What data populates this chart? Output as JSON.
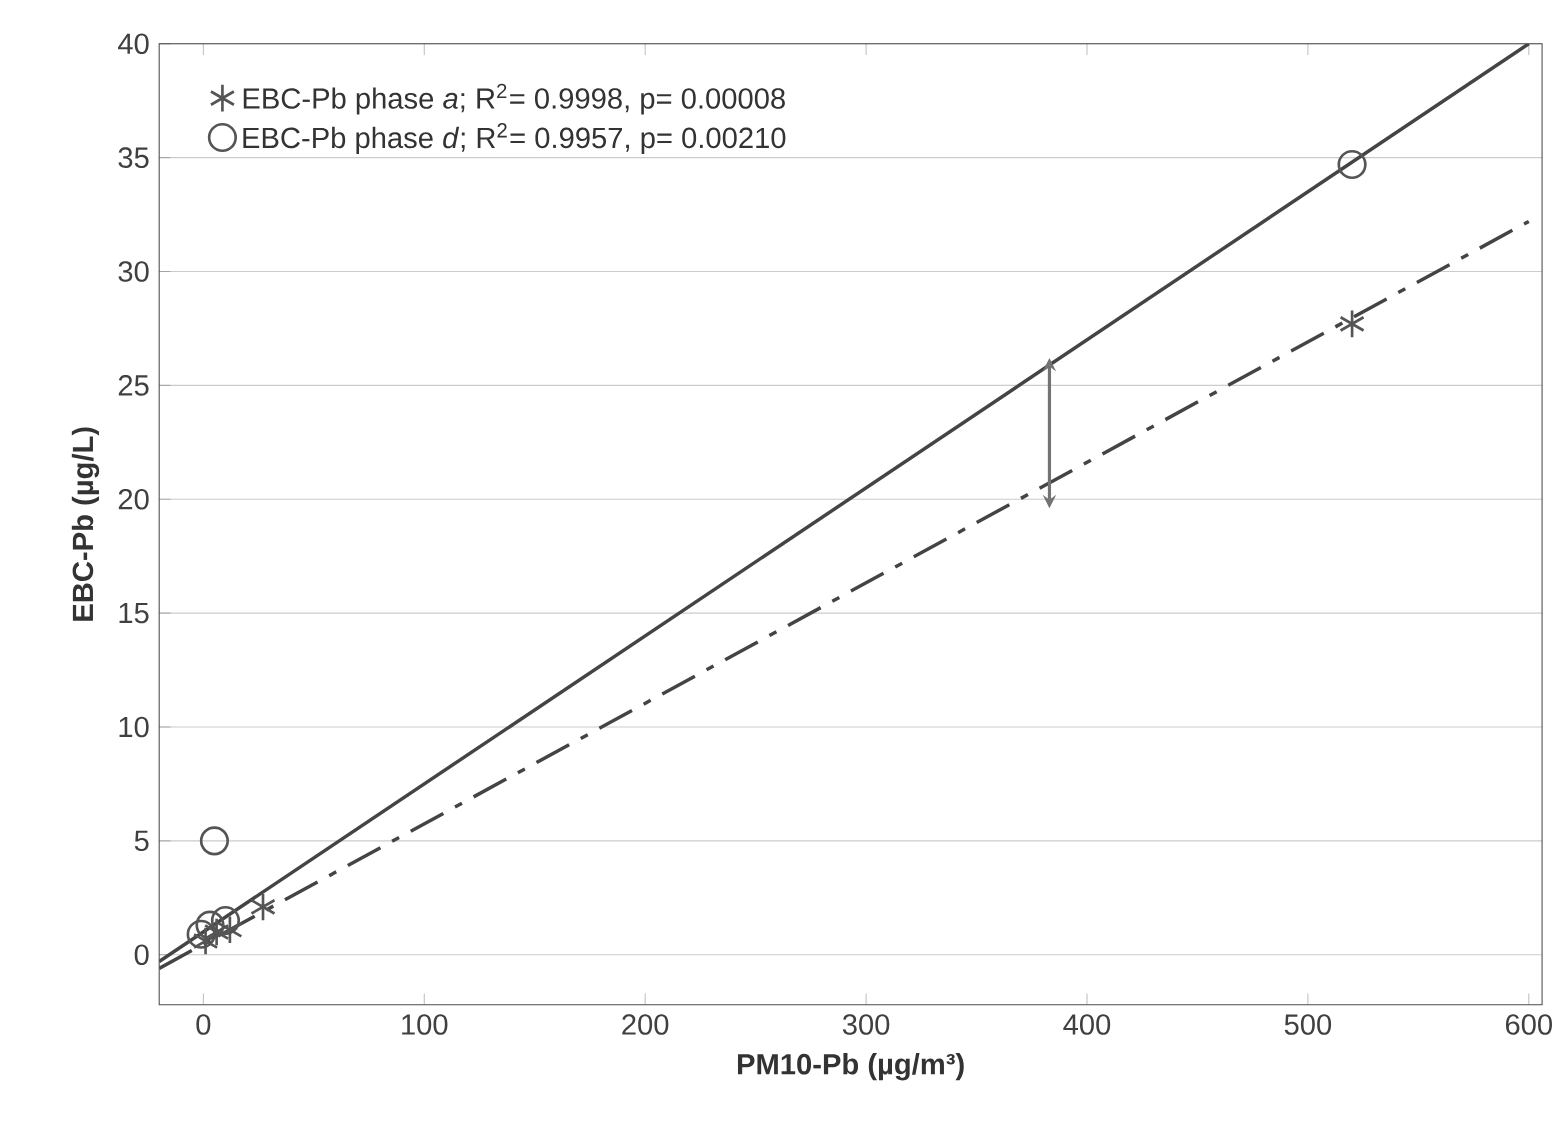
{
  "chart_data": {
    "type": "scatter",
    "xlabel": "PM10-Pb (µg/m³)",
    "ylabel": "EBC-Pb (µg/L)",
    "xlim": [
      -20,
      606
    ],
    "ylim": [
      -2.2,
      40
    ],
    "xticks": [
      0,
      100,
      200,
      300,
      400,
      500,
      600
    ],
    "yticks": [
      0,
      5,
      10,
      15,
      20,
      25,
      30,
      35,
      40
    ],
    "grid": "y",
    "legend": "top left",
    "series": [
      {
        "name": "EBC-Pb phase *a*; R$^{2}$= 0.9998, p= 0.00008",
        "marker": "cross",
        "color": "#555555",
        "x": [
          1,
          6,
          12,
          27,
          520
        ],
        "values": [
          0.6,
          1.0,
          1.1,
          2.1,
          27.7
        ]
      },
      {
        "name": "EBC-Pb phase *d*; R$^{2}$= 0.9957, p= 0.00210",
        "marker": "circle",
        "color": "#555555",
        "x": [
          -1,
          3,
          10,
          5,
          520
        ],
        "values": [
          0.9,
          1.3,
          1.5,
          5.0,
          34.7
        ]
      },
      {
        "type": "line",
        "line_style": "dashed",
        "color": "#444444",
        "x": [
          -20,
          600
        ],
        "values": [
          -0.6,
          32.2
        ]
      },
      {
        "type": "line",
        "line_style": "solid",
        "color": "#444444",
        "x": [
          -20,
          600
        ],
        "values": [
          -0.3,
          40.0
        ]
      }
    ]
  }
}
